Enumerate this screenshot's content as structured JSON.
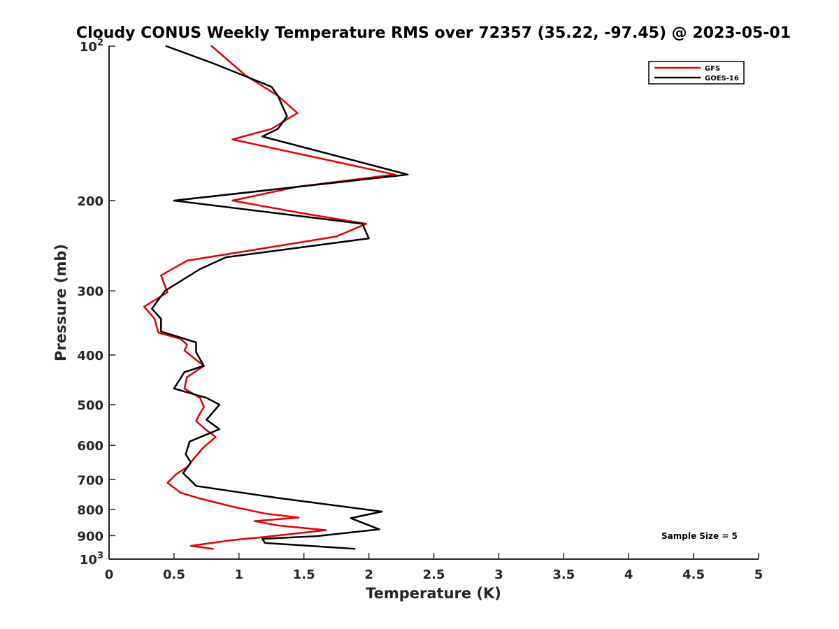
{
  "chart_data": {
    "type": "line",
    "title": "Cloudy CONUS Weekly Temperature RMS over 72357 (35.22, -97.45) @ 2023-05-01",
    "xlabel": "Temperature (K)",
    "ylabel": "Pressure (mb)",
    "xlim": [
      0,
      5
    ],
    "ylim": [
      100,
      1000
    ],
    "y_scale": "log",
    "y_reversed": true,
    "grid": false,
    "legend_position": "top-right",
    "x_ticks": [
      0,
      0.5,
      1,
      1.5,
      2,
      2.5,
      3,
      3.5,
      4,
      4.5,
      5
    ],
    "x_tick_labels": [
      "0",
      "0.5",
      "1",
      "1.5",
      "2",
      "2.5",
      "3",
      "3.5",
      "4",
      "4.5",
      "5"
    ],
    "y_ticks": [
      100,
      200,
      300,
      400,
      500,
      600,
      700,
      800,
      900,
      1000
    ],
    "y_tick_labels": [
      {
        "base": "10",
        "exp": "2"
      },
      {
        "base": "200",
        "exp": ""
      },
      {
        "base": "300",
        "exp": ""
      },
      {
        "base": "400",
        "exp": ""
      },
      {
        "base": "500",
        "exp": ""
      },
      {
        "base": "600",
        "exp": ""
      },
      {
        "base": "700",
        "exp": ""
      },
      {
        "base": "800",
        "exp": ""
      },
      {
        "base": "900",
        "exp": ""
      },
      {
        "base": "10",
        "exp": "3"
      }
    ],
    "annotation": "Sample Size = 5",
    "series": [
      {
        "name": "GFS",
        "color": "#e60000",
        "points": [
          [
            0.79,
            100
          ],
          [
            1.05,
            114
          ],
          [
            1.3,
            125
          ],
          [
            1.45,
            135
          ],
          [
            1.25,
            145
          ],
          [
            0.95,
            152
          ],
          [
            1.6,
            165
          ],
          [
            2.2,
            178
          ],
          [
            1.45,
            188
          ],
          [
            0.95,
            200
          ],
          [
            1.5,
            212
          ],
          [
            1.98,
            222
          ],
          [
            1.75,
            235
          ],
          [
            0.6,
            262
          ],
          [
            0.4,
            280
          ],
          [
            0.45,
            302
          ],
          [
            0.27,
            322
          ],
          [
            0.35,
            340
          ],
          [
            0.38,
            362
          ],
          [
            0.55,
            372
          ],
          [
            0.6,
            382
          ],
          [
            0.58,
            392
          ],
          [
            0.65,
            405
          ],
          [
            0.73,
            420
          ],
          [
            0.6,
            442
          ],
          [
            0.58,
            465
          ],
          [
            0.7,
            485
          ],
          [
            0.73,
            505
          ],
          [
            0.7,
            520
          ],
          [
            0.67,
            538
          ],
          [
            0.74,
            558
          ],
          [
            0.82,
            578
          ],
          [
            0.72,
            608
          ],
          [
            0.65,
            638
          ],
          [
            0.6,
            662
          ],
          [
            0.52,
            682
          ],
          [
            0.45,
            710
          ],
          [
            0.55,
            742
          ],
          [
            0.7,
            762
          ],
          [
            0.95,
            790
          ],
          [
            1.2,
            815
          ],
          [
            1.46,
            830
          ],
          [
            1.12,
            843
          ],
          [
            1.3,
            860
          ],
          [
            1.67,
            878
          ],
          [
            1.2,
            905
          ],
          [
            0.95,
            918
          ],
          [
            0.63,
            942
          ],
          [
            0.8,
            955
          ]
        ]
      },
      {
        "name": "GOES-16",
        "color": "#000000",
        "points": [
          [
            0.44,
            100
          ],
          [
            0.8,
            108
          ],
          [
            1.25,
            120
          ],
          [
            1.3,
            125
          ],
          [
            1.37,
            137
          ],
          [
            1.3,
            145
          ],
          [
            1.18,
            150
          ],
          [
            2.3,
            178
          ],
          [
            0.5,
            200
          ],
          [
            1.95,
            222
          ],
          [
            2.0,
            237
          ],
          [
            0.9,
            258
          ],
          [
            0.7,
            272
          ],
          [
            0.43,
            300
          ],
          [
            0.33,
            325
          ],
          [
            0.4,
            340
          ],
          [
            0.4,
            360
          ],
          [
            0.67,
            378
          ],
          [
            0.67,
            395
          ],
          [
            0.73,
            420
          ],
          [
            0.58,
            432
          ],
          [
            0.5,
            465
          ],
          [
            0.75,
            485
          ],
          [
            0.85,
            500
          ],
          [
            0.75,
            535
          ],
          [
            0.85,
            558
          ],
          [
            0.62,
            590
          ],
          [
            0.59,
            625
          ],
          [
            0.63,
            648
          ],
          [
            0.57,
            680
          ],
          [
            0.63,
            703
          ],
          [
            0.67,
            720
          ],
          [
            1.3,
            760
          ],
          [
            2.1,
            808
          ],
          [
            1.86,
            832
          ],
          [
            2.08,
            875
          ],
          [
            1.6,
            902
          ],
          [
            1.18,
            913
          ],
          [
            1.2,
            930
          ],
          [
            1.89,
            955
          ]
        ]
      }
    ]
  }
}
